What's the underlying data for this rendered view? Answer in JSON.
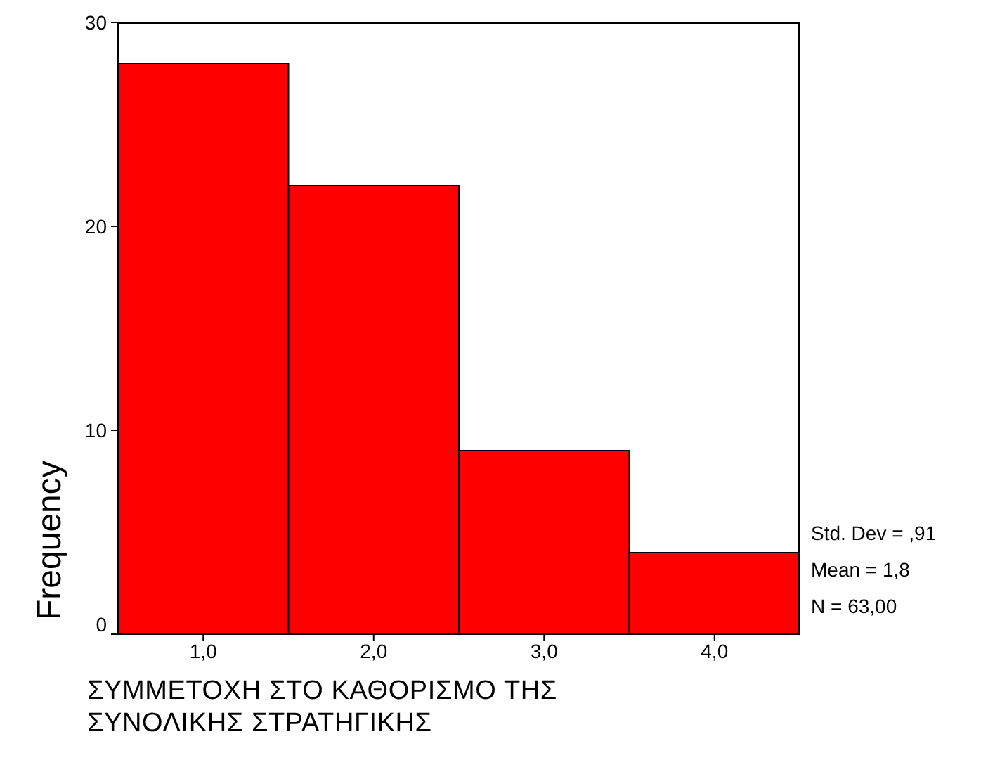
{
  "chart_data": {
    "type": "histogram",
    "xlabel": "ΣΥΜΜΕΤΟΧΗ ΣΤΟ ΚΑΘΟΡΙΣΜΟ ΤΗΣ ΣΥΝΟΛΙΚΗΣ ΣΤΡΑΤΗΓΙΚΗΣ",
    "ylabel": "Frequency",
    "bins": [
      0.5,
      1.5,
      2.5,
      3.5,
      4.5
    ],
    "values": [
      28,
      22,
      9,
      4
    ],
    "color": "#ff0000",
    "xlim": [
      0.5,
      4.5
    ],
    "xticks": [
      {
        "value": 1,
        "label": "1,0"
      },
      {
        "value": 2,
        "label": "2,0"
      },
      {
        "value": 3,
        "label": "3,0"
      },
      {
        "value": 4,
        "label": "4,0"
      }
    ],
    "ylim": [
      0,
      30
    ],
    "yticks": [
      0,
      10,
      20,
      30
    ],
    "grid": false,
    "legend": false,
    "annotations": [
      "Std. Dev = ,91",
      "Mean = 1,8",
      "N = 63,00"
    ]
  }
}
